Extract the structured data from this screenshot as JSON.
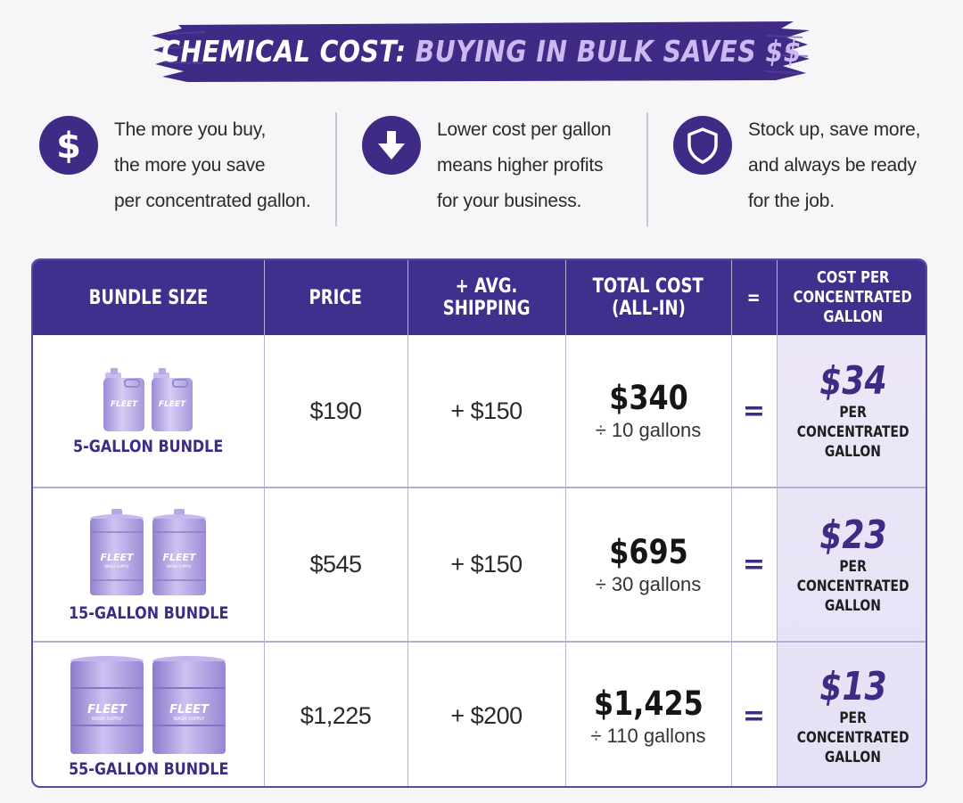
{
  "title": {
    "part1": "CHEMICAL COST:",
    "part2": "BUYING IN BULK SAVES $$"
  },
  "features": [
    {
      "icon": "dollar-icon",
      "lines": [
        "The more you buy,",
        "the more you save",
        "per concentrated gallon."
      ]
    },
    {
      "icon": "arrow-down-icon",
      "lines": [
        "Lower cost per gallon",
        "means higher profits",
        "for your business."
      ]
    },
    {
      "icon": "shield-icon",
      "lines": [
        "Stock up, save more,",
        "and always be ready",
        "for the job."
      ]
    }
  ],
  "table": {
    "headers": {
      "bundle": [
        "BUNDLE SIZE"
      ],
      "price": [
        "PRICE"
      ],
      "shipping": [
        "+ AVG.",
        "SHIPPING"
      ],
      "total": [
        "TOTAL COST",
        "(ALL-IN)"
      ],
      "eq": [
        "="
      ],
      "cpg": [
        "COST PER",
        "CONCENTRATED",
        "GALLON"
      ]
    },
    "rows": [
      {
        "bundle_label": "5-GALLON BUNDLE",
        "product_brand": "FLEET",
        "price": "$190",
        "shipping": "+ $150",
        "total": "$340",
        "divisor": "÷ 10 gallons",
        "eq": "=",
        "cpg": "$34",
        "cpg_unit": [
          "PER",
          "CONCENTRATED",
          "GALLON"
        ]
      },
      {
        "bundle_label": "15-GALLON BUNDLE",
        "product_brand": "FLEET",
        "product_sub": "WASH SUPPLY",
        "price": "$545",
        "shipping": "+ $150",
        "total": "$695",
        "divisor": "÷ 30 gallons",
        "eq": "=",
        "cpg": "$23",
        "cpg_unit": [
          "PER",
          "CONCENTRATED",
          "GALLON"
        ]
      },
      {
        "bundle_label": "55-GALLON BUNDLE",
        "product_brand": "FLEET",
        "product_sub": "WASH SUPPLY",
        "price": "$1,225",
        "shipping": "+ $200",
        "total": "$1,425",
        "divisor": "÷ 110 gallons",
        "eq": "=",
        "cpg": "$13",
        "cpg_unit": [
          "PER",
          "CONCENTRATED",
          "GALLON"
        ]
      }
    ]
  },
  "colors": {
    "primary": "#402f8c",
    "accent_light": "#cdb9f2",
    "highlight_bg": "#e9e4f7",
    "product_lavender": "#b7a6e6"
  }
}
